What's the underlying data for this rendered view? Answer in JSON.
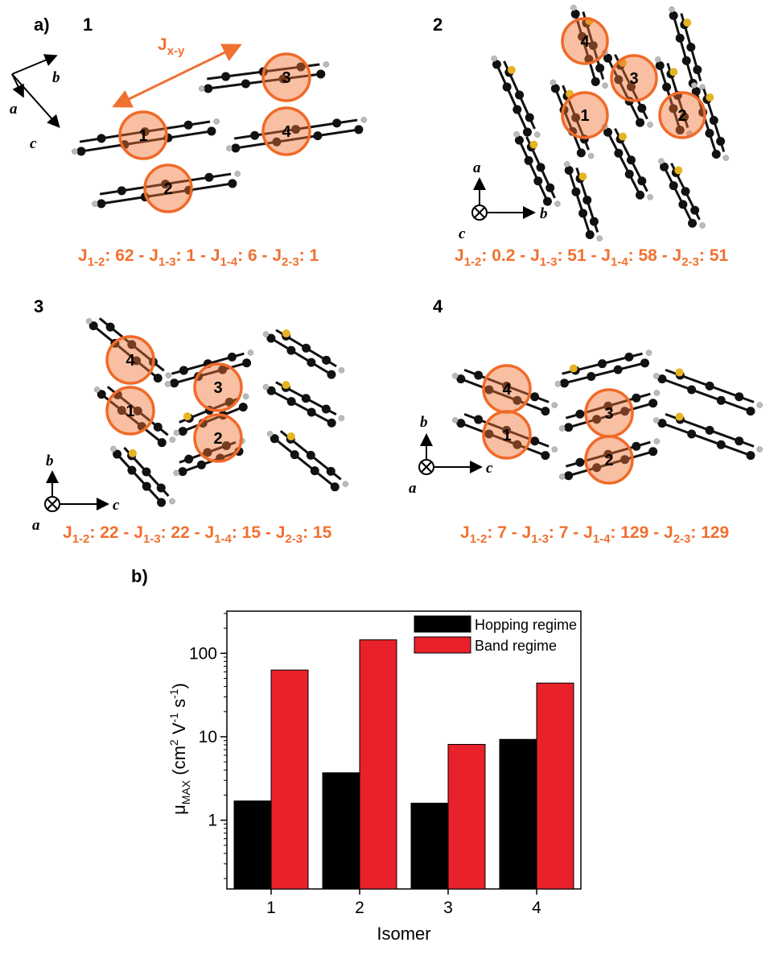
{
  "panel_a": {
    "label": "a)",
    "jxy_label": "J",
    "jxy_sub": "x-y",
    "quadrants": [
      {
        "number": "1",
        "axes": [
          "b",
          "a",
          "c"
        ],
        "couplings": [
          {
            "j": "J",
            "sub": "1-2",
            "v": ": 62 - "
          },
          {
            "j": "J",
            "sub": "1-3",
            "v": ": 1 - "
          },
          {
            "j": "J",
            "sub": "1-4",
            "v": ": 6 - "
          },
          {
            "j": "J",
            "sub": "2-3",
            "v": ": 1"
          }
        ],
        "molecules": [
          "1",
          "2",
          "3",
          "4"
        ]
      },
      {
        "number": "2",
        "axes": [
          "a",
          "b",
          "c"
        ],
        "couplings": [
          {
            "j": "J",
            "sub": "1-2",
            "v": ": 0.2 - "
          },
          {
            "j": "J",
            "sub": "1-3",
            "v": ": 51 - "
          },
          {
            "j": "J",
            "sub": "1-4",
            "v": ": 58 - "
          },
          {
            "j": "J",
            "sub": "2-3",
            "v": ": 51"
          }
        ],
        "molecules": [
          "1",
          "2",
          "3",
          "4"
        ]
      },
      {
        "number": "3",
        "axes": [
          "b",
          "c",
          "a"
        ],
        "couplings": [
          {
            "j": "J",
            "sub": "1-2",
            "v": ": 22 - "
          },
          {
            "j": "J",
            "sub": "1-3",
            "v": ": 22 - "
          },
          {
            "j": "J",
            "sub": "1-4",
            "v": ": 15 - "
          },
          {
            "j": "J",
            "sub": "2-3",
            "v": ": 15"
          }
        ],
        "molecules": [
          "1",
          "2",
          "3",
          "4"
        ]
      },
      {
        "number": "4",
        "axes": [
          "b",
          "c",
          "a"
        ],
        "couplings": [
          {
            "j": "J",
            "sub": "1-2",
            "v": ": 7 - "
          },
          {
            "j": "J",
            "sub": "1-3",
            "v": ": 7 - "
          },
          {
            "j": "J",
            "sub": "1-4",
            "v": ": 129 - "
          },
          {
            "j": "J",
            "sub": "2-3",
            "v": ": 129"
          }
        ],
        "molecules": [
          "1",
          "2",
          "3",
          "4"
        ]
      }
    ]
  },
  "panel_b": {
    "label": "b)"
  },
  "chart_data": {
    "type": "bar",
    "categories": [
      "1",
      "2",
      "3",
      "4"
    ],
    "series": [
      {
        "name": "Hopping regime",
        "color": "#000000",
        "values": [
          1.7,
          3.7,
          1.6,
          9.3
        ]
      },
      {
        "name": "Band regime",
        "color": "#e8212a",
        "values": [
          63,
          145,
          8.1,
          44
        ]
      }
    ],
    "xlabel": "Isomer",
    "ylabel_parts": {
      "mu": "μ",
      "sub": "MAX",
      "unit_a": " (cm",
      "sup2": "2",
      "unit_b": " V",
      "supm1a": "-1",
      "unit_c": " s",
      "supm1b": "-1",
      "close": ")"
    },
    "yscale": "log",
    "ylim": [
      0.15,
      320
    ],
    "yticks": [
      1,
      10,
      100
    ],
    "ytick_labels": [
      "1",
      "10",
      "100"
    ],
    "legend_position": "top-right",
    "grid": false
  }
}
